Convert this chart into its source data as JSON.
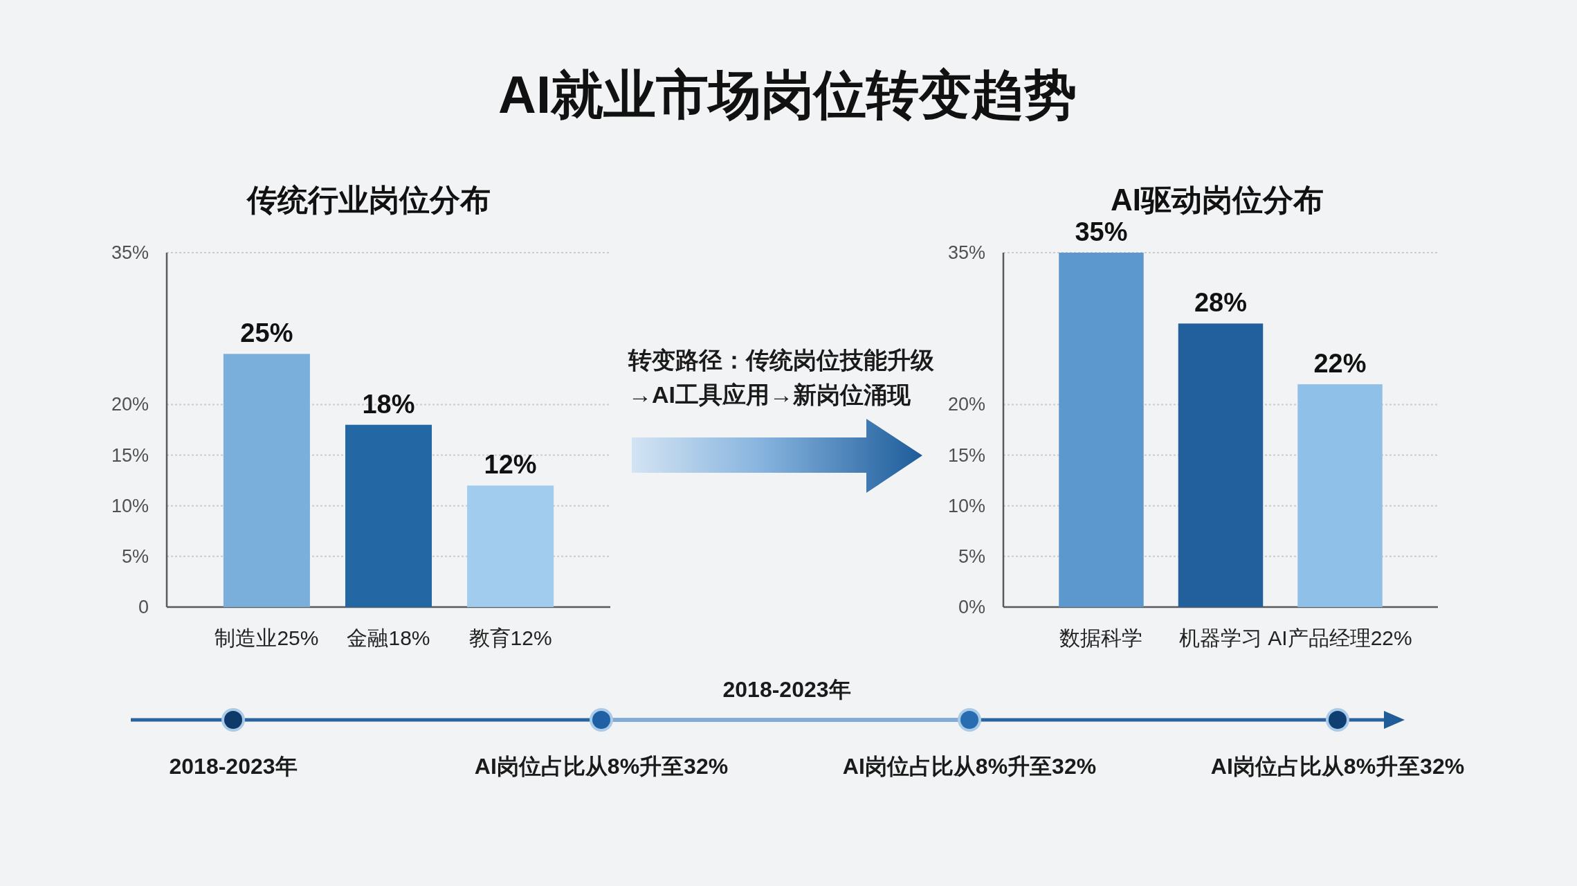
{
  "chart_data": [
    {
      "type": "other",
      "title": "AI就业市场岗位转变趋势",
      "annotations": [
        "转变路径：传统岗位技能升级→AI工具应用→新岗位涌现",
        "2018-2023年",
        "2018-2023年",
        "AI岗位占比从8%升至32%",
        "AI岗位占比从8%升至32%",
        "AI岗位占比从8%升至32%"
      ]
    },
    {
      "type": "bar",
      "title": "传统行业岗位分布",
      "categories": [
        "制造业25%",
        "金融18%",
        "教育12%"
      ],
      "values": [
        25,
        18,
        12
      ],
      "value_labels": [
        "25%",
        "18%",
        "12%"
      ],
      "colors": [
        "#7aafdc",
        "#2467a5",
        "#a2ccee"
      ],
      "ylim": [
        0,
        35
      ],
      "yticks": [
        {
          "value": 0,
          "label": "0"
        },
        {
          "value": 5,
          "label": "5%"
        },
        {
          "value": 10,
          "label": "10%"
        },
        {
          "value": 15,
          "label": "15%"
        },
        {
          "value": 20,
          "label": "20%"
        },
        {
          "value": 35,
          "label": "35%"
        }
      ],
      "grid": "y"
    },
    {
      "type": "bar",
      "title": "AI驱动岗位分布",
      "categories": [
        "数据科学",
        "机器学习",
        "AI产品经理22%"
      ],
      "values": [
        35,
        28,
        22
      ],
      "value_labels": [
        "35%",
        "28%",
        "22%"
      ],
      "colors": [
        "#5c97cd",
        "#215f9d",
        "#8fc0e8"
      ],
      "ylim": [
        0,
        35
      ],
      "yticks": [
        {
          "value": 0,
          "label": "0%"
        },
        {
          "value": 5,
          "label": "5%"
        },
        {
          "value": 10,
          "label": "10%"
        },
        {
          "value": 15,
          "label": "15%"
        },
        {
          "value": 20,
          "label": "20%"
        },
        {
          "value": 35,
          "label": "35%"
        }
      ],
      "grid": "y"
    }
  ]
}
